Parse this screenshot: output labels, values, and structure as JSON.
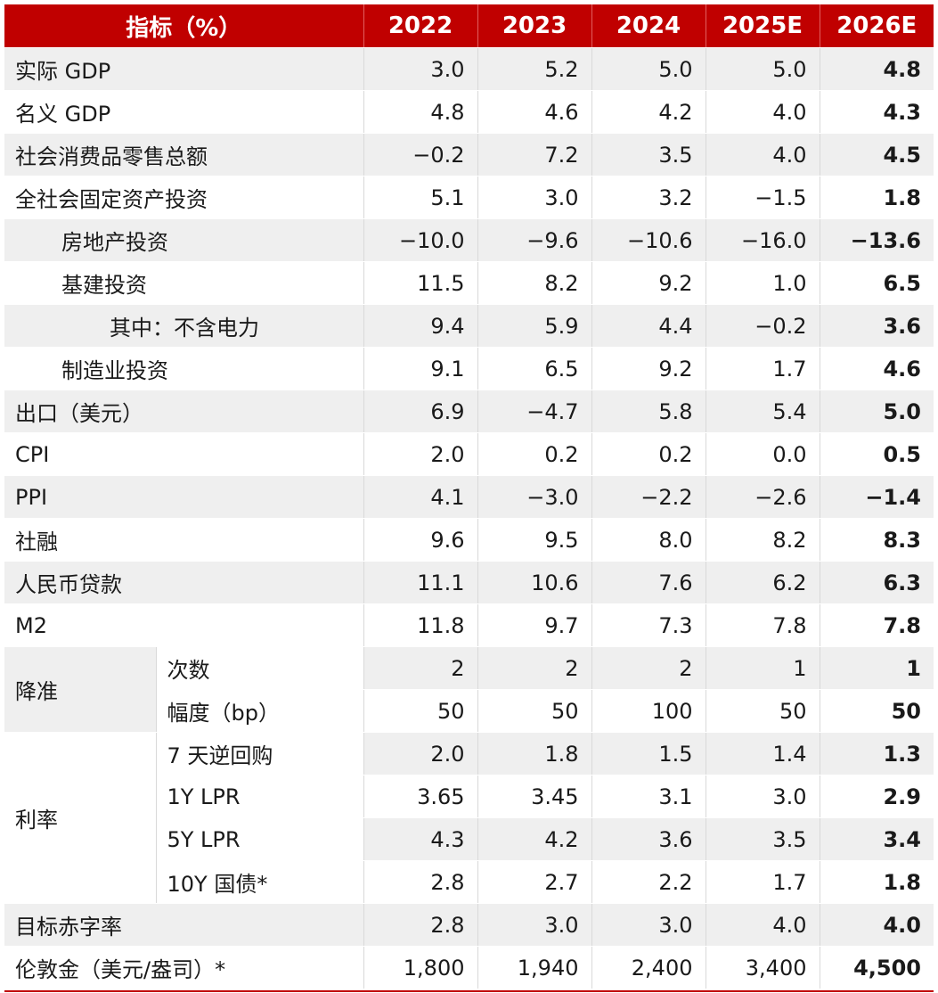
{
  "header": {
    "indicator": "指标（%）",
    "years": [
      "2022",
      "2023",
      "2024",
      "2025E",
      "2026E"
    ]
  },
  "rows": [
    {
      "label": "实际 GDP",
      "values": [
        "3.0",
        "5.2",
        "5.0",
        "5.0",
        "4.8"
      ]
    },
    {
      "label": "名义 GDP",
      "values": [
        "4.8",
        "4.6",
        "4.2",
        "4.0",
        "4.3"
      ]
    },
    {
      "label": "社会消费品零售总额",
      "values": [
        "−0.2",
        "7.2",
        "3.5",
        "4.0",
        "4.5"
      ]
    },
    {
      "label": "全社会固定资产投资",
      "values": [
        "5.1",
        "3.0",
        "3.2",
        "−1.5",
        "1.8"
      ]
    },
    {
      "label": "房地产投资",
      "values": [
        "−10.0",
        "−9.6",
        "−10.6",
        "−16.0",
        "−13.6"
      ]
    },
    {
      "label": "基建投资",
      "values": [
        "11.5",
        "8.2",
        "9.2",
        "1.0",
        "6.5"
      ]
    },
    {
      "label": "其中：不含电力",
      "values": [
        "9.4",
        "5.9",
        "4.4",
        "−0.2",
        "3.6"
      ]
    },
    {
      "label": "制造业投资",
      "values": [
        "9.1",
        "6.5",
        "9.2",
        "1.7",
        "4.6"
      ]
    },
    {
      "label": "出口（美元）",
      "values": [
        "6.9",
        "−4.7",
        "5.8",
        "5.4",
        "5.0"
      ]
    },
    {
      "label": "CPI",
      "values": [
        "2.0",
        "0.2",
        "0.2",
        "0.0",
        "0.5"
      ]
    },
    {
      "label": "PPI",
      "values": [
        "4.1",
        "−3.0",
        "−2.2",
        "−2.6",
        "−1.4"
      ]
    },
    {
      "label": "社融",
      "values": [
        "9.6",
        "9.5",
        "8.0",
        "8.2",
        "8.3"
      ]
    },
    {
      "label": "人民币贷款",
      "values": [
        "11.1",
        "10.6",
        "7.6",
        "6.2",
        "6.3"
      ]
    },
    {
      "label": "M2",
      "values": [
        "11.8",
        "9.7",
        "7.3",
        "7.8",
        "7.8"
      ]
    }
  ],
  "rrr": {
    "group": "降准",
    "items": [
      {
        "label": "次数",
        "values": [
          "2",
          "2",
          "2",
          "1",
          "1"
        ]
      },
      {
        "label": "幅度（bp）",
        "values": [
          "50",
          "50",
          "100",
          "50",
          "50"
        ]
      }
    ]
  },
  "rates": {
    "group": "利率",
    "items": [
      {
        "label": "7 天逆回购",
        "values": [
          "2.0",
          "1.8",
          "1.5",
          "1.4",
          "1.3"
        ]
      },
      {
        "label": "1Y LPR",
        "values": [
          "3.65",
          "3.45",
          "3.1",
          "3.0",
          "2.9"
        ]
      },
      {
        "label": "5Y LPR",
        "values": [
          "4.3",
          "4.2",
          "3.6",
          "3.5",
          "3.4"
        ]
      },
      {
        "label": "10Y 国债*",
        "values": [
          "2.8",
          "2.7",
          "2.2",
          "1.7",
          "1.8"
        ]
      }
    ]
  },
  "tail": [
    {
      "label": "目标赤字率",
      "values": [
        "2.8",
        "3.0",
        "3.0",
        "4.0",
        "4.0"
      ]
    },
    {
      "label": "伦敦金（美元/盎司）*",
      "values": [
        "1,800",
        "1,940",
        "2,400",
        "3,400",
        "4,500"
      ]
    }
  ],
  "colors": {
    "header_bg": "#c00000",
    "row_shade": "#efefef",
    "rule": "#d9d9d9"
  }
}
